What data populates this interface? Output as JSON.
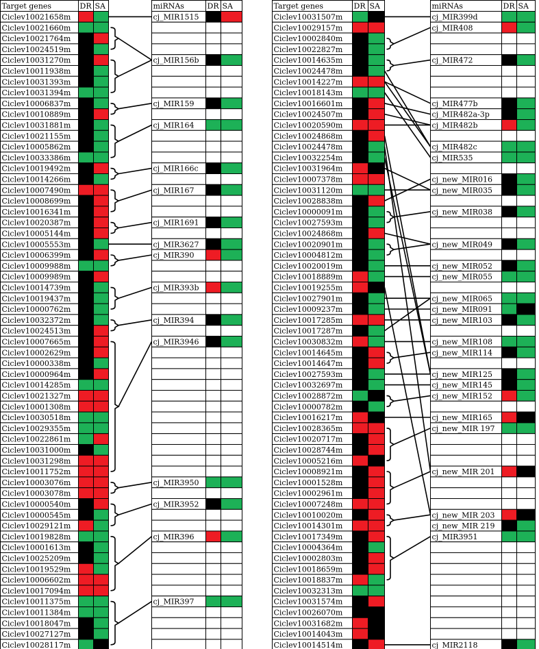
{
  "left_panel": {
    "genes_header": "Target genes",
    "dr_header": "DR",
    "sa_header": "SA",
    "mirnas_header": "miRNAs",
    "genes": [
      {
        "name": "Ciclev10021658m",
        "dr": "red",
        "sa": "green"
      },
      {
        "name": "Ciclev10021660m",
        "dr": "green",
        "sa": "green"
      },
      {
        "name": "Ciclev10021764m",
        "dr": "black",
        "sa": "red"
      },
      {
        "name": "Ciclev10024519m",
        "dr": "black",
        "sa": "green"
      },
      {
        "name": "Ciclev10031270m",
        "dr": "black",
        "sa": "red"
      },
      {
        "name": "Ciclev10011938m",
        "dr": "black",
        "sa": "green"
      },
      {
        "name": "Ciclev10031393m",
        "dr": "black",
        "sa": "green"
      },
      {
        "name": "Ciclev10031394m",
        "dr": "green",
        "sa": "green"
      },
      {
        "name": "Ciclev10006837m",
        "dr": "black",
        "sa": "green"
      },
      {
        "name": "Ciclev10010889m",
        "dr": "black",
        "sa": "red"
      },
      {
        "name": "Ciclev10031881m",
        "dr": "black",
        "sa": "green"
      },
      {
        "name": "Ciclev10021155m",
        "dr": "black",
        "sa": "green"
      },
      {
        "name": "Ciclev10005862m",
        "dr": "black",
        "sa": "green"
      },
      {
        "name": "Ciclev10033386m",
        "dr": "green",
        "sa": "green"
      },
      {
        "name": "Ciclev10019492m",
        "dr": "black",
        "sa": "red"
      },
      {
        "name": "Ciclev10014266m",
        "dr": "black",
        "sa": "green"
      },
      {
        "name": "Ciclev10007490m",
        "dr": "red",
        "sa": "red"
      },
      {
        "name": "Ciclev10008699m",
        "dr": "black",
        "sa": "red"
      },
      {
        "name": "Ciclev10016341m",
        "dr": "black",
        "sa": "red"
      },
      {
        "name": "Ciclev10020387m",
        "dr": "black",
        "sa": "red"
      },
      {
        "name": "Ciclev10005144m",
        "dr": "black",
        "sa": "red"
      },
      {
        "name": "Ciclev10005553m",
        "dr": "black",
        "sa": "green"
      },
      {
        "name": "Ciclev10006399m",
        "dr": "black",
        "sa": "red"
      },
      {
        "name": "Ciclev10009988m",
        "dr": "green",
        "sa": "green"
      },
      {
        "name": "Ciclev10009989m",
        "dr": "black",
        "sa": "red"
      },
      {
        "name": "Ciclev10014739m",
        "dr": "black",
        "sa": "green"
      },
      {
        "name": "Ciclev10019437m",
        "dr": "black",
        "sa": "green"
      },
      {
        "name": "Ciclev10000762m",
        "dr": "black",
        "sa": "green"
      },
      {
        "name": "Ciclev10032372m",
        "dr": "black",
        "sa": "green"
      },
      {
        "name": "Ciclev10024513m",
        "dr": "black",
        "sa": "red"
      },
      {
        "name": "Ciclev10007665m",
        "dr": "black",
        "sa": "red"
      },
      {
        "name": "Ciclev10002629m",
        "dr": "black",
        "sa": "red"
      },
      {
        "name": "Ciclev10000338m",
        "dr": "black",
        "sa": "green"
      },
      {
        "name": "Ciclev10000964m",
        "dr": "black",
        "sa": "red"
      },
      {
        "name": "Ciclev10014285m",
        "dr": "green",
        "sa": "green"
      },
      {
        "name": "Ciclev10021327m",
        "dr": "red",
        "sa": "red"
      },
      {
        "name": "Ciclev10001308m",
        "dr": "red",
        "sa": "red"
      },
      {
        "name": "Ciclev10030518m",
        "dr": "green",
        "sa": "green"
      },
      {
        "name": "Ciclev10029355m",
        "dr": "green",
        "sa": "green"
      },
      {
        "name": "Ciclev10022861m",
        "dr": "green",
        "sa": "red"
      },
      {
        "name": "Ciclev10031000m",
        "dr": "black",
        "sa": "green"
      },
      {
        "name": "Ciclev10031298m",
        "dr": "red",
        "sa": "red"
      },
      {
        "name": "Ciclev10011752m",
        "dr": "red",
        "sa": "red"
      },
      {
        "name": "Ciclev10003076m",
        "dr": "red",
        "sa": "red"
      },
      {
        "name": "Ciclev10003078m",
        "dr": "red",
        "sa": "red"
      },
      {
        "name": "Ciclev10000540m",
        "dr": "black",
        "sa": "red"
      },
      {
        "name": "Ciclev10000545m",
        "dr": "black",
        "sa": "green"
      },
      {
        "name": "Ciclev10029121m",
        "dr": "red",
        "sa": "green"
      },
      {
        "name": "Ciclev10019828m",
        "dr": "green",
        "sa": "green"
      },
      {
        "name": "Ciclev10001613m",
        "dr": "black",
        "sa": "green"
      },
      {
        "name": "Ciclev10025209m",
        "dr": "black",
        "sa": "green"
      },
      {
        "name": "Ciclev10019529m",
        "dr": "red",
        "sa": "green"
      },
      {
        "name": "Ciclev10006602m",
        "dr": "red",
        "sa": "red"
      },
      {
        "name": "Ciclev10017094m",
        "dr": "red",
        "sa": "red"
      },
      {
        "name": "Ciclev10011375m",
        "dr": "green",
        "sa": "green"
      },
      {
        "name": "Ciclev10011384m",
        "dr": "green",
        "sa": "green"
      },
      {
        "name": "Ciclev10018047m",
        "dr": "black",
        "sa": "green"
      },
      {
        "name": "Ciclev10027127m",
        "dr": "black",
        "sa": "green"
      },
      {
        "name": "Ciclev10028117m",
        "dr": "green",
        "sa": "black"
      }
    ],
    "mirnas": [
      {
        "row": 0,
        "name": "cj_MIR1515",
        "dr": "black",
        "sa": "red"
      },
      {
        "row": 4,
        "name": "cj_MIR156b",
        "dr": "black",
        "sa": "green"
      },
      {
        "row": 8,
        "name": "cj_MIR159",
        "dr": "black",
        "sa": "green"
      },
      {
        "row": 10,
        "name": "cj_MIR164",
        "dr": "green",
        "sa": "green"
      },
      {
        "row": 14,
        "name": "cj_MIR166c",
        "dr": "black",
        "sa": "green"
      },
      {
        "row": 16,
        "name": "cj_MIR167",
        "dr": "black",
        "sa": "green"
      },
      {
        "row": 19,
        "name": "cj_MIR1691",
        "dr": "black",
        "sa": "green"
      },
      {
        "row": 21,
        "name": "cj_MIR3627",
        "dr": "black",
        "sa": "green"
      },
      {
        "row": 22,
        "name": "cj_MIR390",
        "dr": "red",
        "sa": "green"
      },
      {
        "row": 25,
        "name": "cj_MIR393b",
        "dr": "red",
        "sa": "green"
      },
      {
        "row": 28,
        "name": "cj_MIR394",
        "dr": "black",
        "sa": "green"
      },
      {
        "row": 30,
        "name": "cj_MIR3946",
        "dr": "black",
        "sa": "green"
      },
      {
        "row": 43,
        "name": "cj_MIR3950",
        "dr": "green",
        "sa": "green"
      },
      {
        "row": 45,
        "name": "cj_MIR3952",
        "dr": "black",
        "sa": "green"
      },
      {
        "row": 48,
        "name": "cj_MIR396",
        "dr": "red",
        "sa": "green"
      },
      {
        "row": 54,
        "name": "cj_MIR397",
        "dr": "green",
        "sa": "green"
      }
    ]
  },
  "right_panel": {
    "genes_header": "Target genes",
    "dr_header": "DR",
    "sa_header": "SA",
    "mirnas_header": "miRNAs",
    "genes": [
      {
        "name": "Ciclev10031507m",
        "dr": "green",
        "sa": "black"
      },
      {
        "name": "Ciclev10029157m",
        "dr": "red",
        "sa": "red"
      },
      {
        "name": "Ciclev10002840m",
        "dr": "black",
        "sa": "green"
      },
      {
        "name": "Ciclev10022827m",
        "dr": "black",
        "sa": "green"
      },
      {
        "name": "Ciclev10014635m",
        "dr": "black",
        "sa": "green"
      },
      {
        "name": "Ciclev10024478m",
        "dr": "black",
        "sa": "green"
      },
      {
        "name": "Ciclev10014227m",
        "dr": "red",
        "sa": "red"
      },
      {
        "name": "Ciclev10018143m",
        "dr": "green",
        "sa": "green"
      },
      {
        "name": "Ciclev10016601m",
        "dr": "black",
        "sa": "red"
      },
      {
        "name": "Ciclev10024507m",
        "dr": "black",
        "sa": "red"
      },
      {
        "name": "Ciclev10020590m",
        "dr": "red",
        "sa": "red"
      },
      {
        "name": "Ciclev10024868m",
        "dr": "black",
        "sa": "red"
      },
      {
        "name": "Ciclev10024478m",
        "dr": "black",
        "sa": "green"
      },
      {
        "name": "Ciclev10032254m",
        "dr": "black",
        "sa": "green"
      },
      {
        "name": "Ciclev10031964m",
        "dr": "red",
        "sa": "black"
      },
      {
        "name": "Ciclev10007378m",
        "dr": "red",
        "sa": "red"
      },
      {
        "name": "Ciclev10031120m",
        "dr": "green",
        "sa": "green"
      },
      {
        "name": "Ciclev10028838m",
        "dr": "black",
        "sa": "red"
      },
      {
        "name": "Ciclev10000091m",
        "dr": "black",
        "sa": "green"
      },
      {
        "name": "Ciclev10027593m",
        "dr": "black",
        "sa": "green"
      },
      {
        "name": "Ciclev10024868m",
        "dr": "black",
        "sa": "red"
      },
      {
        "name": "Ciclev10020901m",
        "dr": "black",
        "sa": "green"
      },
      {
        "name": "Ciclev10004812m",
        "dr": "black",
        "sa": "green"
      },
      {
        "name": "Ciclev10020019m",
        "dr": "black",
        "sa": "green"
      },
      {
        "name": "Ciclev10018889m",
        "dr": "red",
        "sa": "green"
      },
      {
        "name": "Ciclev10019255m",
        "dr": "red",
        "sa": "black"
      },
      {
        "name": "Ciclev10027901m",
        "dr": "black",
        "sa": "green"
      },
      {
        "name": "Ciclev10009237m",
        "dr": "black",
        "sa": "green"
      },
      {
        "name": "Ciclev10017285m",
        "dr": "red",
        "sa": "red"
      },
      {
        "name": "Ciclev10017287m",
        "dr": "black",
        "sa": "green"
      },
      {
        "name": "Ciclev10030832m",
        "dr": "red",
        "sa": "green"
      },
      {
        "name": "Ciclev10014645m",
        "dr": "black",
        "sa": "red"
      },
      {
        "name": "Ciclev10014647m",
        "dr": "black",
        "sa": "red"
      },
      {
        "name": "Ciclev10027593m",
        "dr": "black",
        "sa": "green"
      },
      {
        "name": "Ciclev10032697m",
        "dr": "black",
        "sa": "green"
      },
      {
        "name": "Ciclev10028872m",
        "dr": "green",
        "sa": "black"
      },
      {
        "name": "Ciclev10000782m",
        "dr": "black",
        "sa": "green"
      },
      {
        "name": "Ciclev10016217m",
        "dr": "red",
        "sa": "black"
      },
      {
        "name": "Ciclev10028365m",
        "dr": "red",
        "sa": "red"
      },
      {
        "name": "Ciclev10020717m",
        "dr": "black",
        "sa": "red"
      },
      {
        "name": "Ciclev10028744m",
        "dr": "black",
        "sa": "red"
      },
      {
        "name": "Ciclev10005216m",
        "dr": "red",
        "sa": "black"
      },
      {
        "name": "Ciclev10008921m",
        "dr": "black",
        "sa": "red"
      },
      {
        "name": "Ciclev10001528m",
        "dr": "black",
        "sa": "red"
      },
      {
        "name": "Ciclev10002961m",
        "dr": "black",
        "sa": "red"
      },
      {
        "name": "Ciclev10007248m",
        "dr": "red",
        "sa": "red"
      },
      {
        "name": "Ciclev10010020m",
        "dr": "black",
        "sa": "red"
      },
      {
        "name": "Ciclev10014301m",
        "dr": "red",
        "sa": "red"
      },
      {
        "name": "Ciclev10017349m",
        "dr": "black",
        "sa": "red"
      },
      {
        "name": "Ciclev10004364m",
        "dr": "black",
        "sa": "green"
      },
      {
        "name": "Ciclev10002803m",
        "dr": "black",
        "sa": "red"
      },
      {
        "name": "Ciclev10018659m",
        "dr": "black",
        "sa": "red"
      },
      {
        "name": "Ciclev10018837m",
        "dr": "red",
        "sa": "green"
      },
      {
        "name": "Ciclev10032313m",
        "dr": "green",
        "sa": "green"
      },
      {
        "name": "Ciclev10031574m",
        "dr": "black",
        "sa": "red"
      },
      {
        "name": "Ciclev10026070m",
        "dr": "black",
        "sa": "black"
      },
      {
        "name": "Ciclev10031682m",
        "dr": "red",
        "sa": "black"
      },
      {
        "name": "Ciclev10014043m",
        "dr": "red",
        "sa": "black"
      },
      {
        "name": "Ciclev10014514m",
        "dr": "black",
        "sa": "red"
      }
    ],
    "mirnas": [
      {
        "row": 0,
        "name": "cj_MIR399d",
        "dr": "green",
        "sa": "green"
      },
      {
        "row": 1,
        "name": "cj_MIR408",
        "dr": "red",
        "sa": "green"
      },
      {
        "row": 4,
        "name": "cj_MIR472",
        "dr": "black",
        "sa": "green"
      },
      {
        "row": 8,
        "name": "cj_MIR477b",
        "dr": "black",
        "sa": "green"
      },
      {
        "row": 9,
        "name": "cj_MIR482a-3p",
        "dr": "black",
        "sa": "green"
      },
      {
        "row": 10,
        "name": "cj_MIR482b",
        "dr": "red",
        "sa": "green"
      },
      {
        "row": 12,
        "name": "cj_MIR482c",
        "dr": "green",
        "sa": "green"
      },
      {
        "row": 13,
        "name": "cj_MIR535",
        "dr": "green",
        "sa": "green"
      },
      {
        "row": 15,
        "name": "cj_new_MIR016",
        "dr": "black",
        "sa": "green"
      },
      {
        "row": 16,
        "name": "cj_new_MIR035",
        "dr": "black",
        "sa": "green"
      },
      {
        "row": 18,
        "name": "cj_new_MIR038",
        "dr": "black",
        "sa": "green"
      },
      {
        "row": 21,
        "name": "cj_new_MIR049",
        "dr": "black",
        "sa": "green"
      },
      {
        "row": 23,
        "name": "cj_new_MIR052",
        "dr": "black",
        "sa": "green"
      },
      {
        "row": 24,
        "name": "cj_new_MIR055",
        "dr": "green",
        "sa": "green"
      },
      {
        "row": 26,
        "name": "cj_new_MIR065",
        "dr": "green",
        "sa": "green"
      },
      {
        "row": 27,
        "name": "cj_new_MIR091",
        "dr": "green",
        "sa": "black"
      },
      {
        "row": 28,
        "name": "cj_new_MIR103",
        "dr": "black",
        "sa": "green"
      },
      {
        "row": 30,
        "name": "cj_new_MIR108",
        "dr": "green",
        "sa": "green"
      },
      {
        "row": 31,
        "name": "cj_new_MIR114",
        "dr": "black",
        "sa": "green"
      },
      {
        "row": 33,
        "name": "cj_new_MIR125",
        "dr": "black",
        "sa": "green"
      },
      {
        "row": 34,
        "name": "cj_new_MIR145",
        "dr": "black",
        "sa": "green"
      },
      {
        "row": 35,
        "name": "cj_new_MIR152",
        "dr": "red",
        "sa": "green"
      },
      {
        "row": 37,
        "name": "cj_new_MIR165",
        "dr": "red",
        "sa": "black"
      },
      {
        "row": 38,
        "name": "cj_new_MIR 197",
        "dr": "green",
        "sa": "green"
      },
      {
        "row": 42,
        "name": "cj_new_MIR 201",
        "dr": "red",
        "sa": "black"
      },
      {
        "row": 46,
        "name": "cj_new_MIR 203",
        "dr": "red",
        "sa": "black"
      },
      {
        "row": 47,
        "name": "cj_new_MIR 219",
        "dr": "black",
        "sa": "green"
      },
      {
        "row": 48,
        "name": "cj_MIR3951",
        "dr": "green",
        "sa": "green"
      },
      {
        "row": 58,
        "name": "cj_MIR2118",
        "dr": "black",
        "sa": "green"
      }
    ]
  },
  "colors": {
    "red": "#ee1c24",
    "green": "#1db157",
    "black": "#000000",
    "empty": "#ffffff",
    "border": "#000000"
  }
}
